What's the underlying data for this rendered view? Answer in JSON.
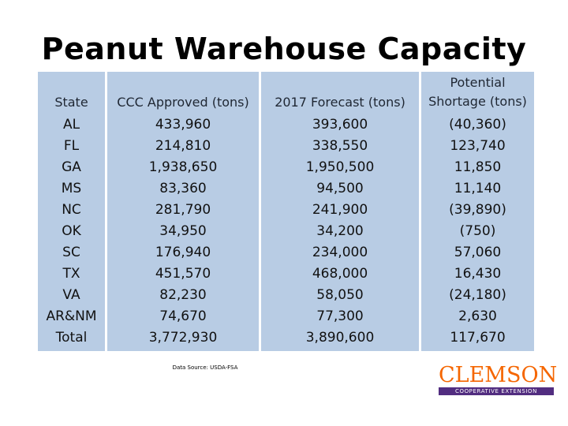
{
  "title": "Peanut Warehouse Capacity",
  "columns": [
    {
      "header": [
        "State"
      ],
      "values": [
        "AL",
        "FL",
        "GA",
        "MS",
        "NC",
        "OK",
        "SC",
        "TX",
        "VA",
        "AR&NM",
        "Total"
      ]
    },
    {
      "header": [
        "CCC Approved (tons)"
      ],
      "values": [
        "433,960",
        "214,810",
        "1,938,650",
        "83,360",
        "281,790",
        "34,950",
        "176,940",
        "451,570",
        "82,230",
        "74,670",
        "3,772,930"
      ]
    },
    {
      "header": [
        "2017 Forecast (tons)"
      ],
      "values": [
        "393,600",
        "338,550",
        "1,950,500",
        "94,500",
        "241,900",
        "34,200",
        "234,000",
        "468,000",
        "58,050",
        "77,300",
        "3,890,600"
      ]
    },
    {
      "header": [
        "Potential",
        "Shortage (tons)"
      ],
      "values": [
        "(40,360)",
        "123,740",
        "11,850",
        "11,140",
        "(39,890)",
        "(750)",
        "57,060",
        "16,430",
        "(24,180)",
        "2,630",
        "117,670"
      ]
    }
  ],
  "source": "Data Source: USDA-FSA",
  "logo": {
    "name": "CLEMSON",
    "subtitle": "COOPERATIVE EXTENSION"
  },
  "colors": {
    "table_bg": "#b8cce4",
    "logo_orange": "#f56600",
    "logo_purple": "#522d80"
  }
}
